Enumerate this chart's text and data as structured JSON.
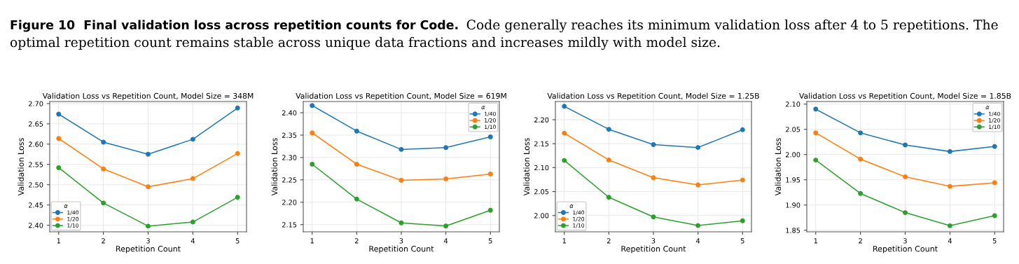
{
  "chart_data": [
    {
      "type": "line",
      "title": "Validation Loss vs Repetition Count, Model Size = 348M",
      "xlabel": "Repetition Count",
      "ylabel": "Validation Loss",
      "legend_title": "α",
      "annotations": [
        "Figure 10  Final validation loss across repetition counts for Code.",
        "Code generally reaches its minimum validation loss after 4 to 5 repetitions. The optimal repetition count remains stable across unique data fractions and increases mildly with model size."
      ],
      "x": [
        1,
        2,
        3,
        4,
        5
      ],
      "xlim": [
        0.8,
        5.2
      ],
      "xticks": [
        1,
        2,
        3,
        4,
        5
      ],
      "ylim": [
        2.384,
        2.705
      ],
      "yticks": [
        {
          "value": 2.4,
          "label": "2.40"
        },
        2.45,
        {
          "value": 2.5,
          "label": "2.50"
        },
        2.55,
        {
          "value": 2.6,
          "label": "2.60"
        },
        2.65,
        {
          "value": 2.7,
          "label": "2.70"
        }
      ],
      "grid": true,
      "legend": "bottom left",
      "marker": "circle",
      "line_style": "solid",
      "series": [
        {
          "name": "1/40",
          "color": "#1f77b4",
          "values": [
            2.674,
            2.605,
            2.575,
            2.612,
            2.689
          ]
        },
        {
          "name": "1/20",
          "color": "#ff7f0e",
          "values": [
            2.614,
            2.539,
            2.495,
            2.515,
            2.577
          ]
        },
        {
          "name": "1/10",
          "color": "#2ca02c",
          "values": [
            2.542,
            2.455,
            2.398,
            2.408,
            2.469
          ]
        }
      ]
    },
    {
      "type": "line",
      "title": "Validation Loss vs Repetition Count, Model Size = 619M",
      "xlabel": "Repetition Count",
      "ylabel": "Validation Loss",
      "legend_title": "α",
      "x": [
        1,
        2,
        3,
        4,
        5
      ],
      "xlim": [
        0.8,
        5.2
      ],
      "xticks": [
        1,
        2,
        3,
        4,
        5
      ],
      "ylim": [
        2.134,
        2.425
      ],
      "yticks": [
        2.15,
        {
          "value": 2.2,
          "label": "2.20"
        },
        2.25,
        {
          "value": 2.3,
          "label": "2.30"
        },
        2.35,
        {
          "value": 2.4,
          "label": "2.40"
        }
      ],
      "grid": true,
      "legend": "top right",
      "marker": "circle",
      "line_style": "solid",
      "series": [
        {
          "name": "1/40",
          "color": "#1f77b4",
          "values": [
            2.416,
            2.359,
            2.318,
            2.322,
            2.346
          ]
        },
        {
          "name": "1/20",
          "color": "#ff7f0e",
          "values": [
            2.355,
            2.285,
            2.249,
            2.252,
            2.263
          ]
        },
        {
          "name": "1/10",
          "color": "#2ca02c",
          "values": [
            2.285,
            2.207,
            2.154,
            2.147,
            2.182
          ]
        }
      ]
    },
    {
      "type": "line",
      "title": "Validation Loss vs Repetition Count, Model Size = 1.25B",
      "xlabel": "Repetition Count",
      "ylabel": "Validation Loss",
      "legend_title": "α",
      "x": [
        1,
        2,
        3,
        4,
        5
      ],
      "xlim": [
        0.8,
        5.2
      ],
      "xticks": [
        1,
        2,
        3,
        4,
        5
      ],
      "ylim": [
        1.966,
        2.238
      ],
      "yticks": [
        {
          "value": 2.0,
          "label": "2.00"
        },
        2.05,
        {
          "value": 2.1,
          "label": "2.10"
        },
        2.15,
        {
          "value": 2.2,
          "label": "2.20"
        }
      ],
      "grid": true,
      "legend": "bottom left",
      "marker": "circle",
      "line_style": "solid",
      "series": [
        {
          "name": "1/40",
          "color": "#1f77b4",
          "values": [
            2.228,
            2.18,
            2.148,
            2.142,
            2.179
          ]
        },
        {
          "name": "1/20",
          "color": "#ff7f0e",
          "values": [
            2.172,
            2.116,
            2.079,
            2.064,
            2.074
          ]
        },
        {
          "name": "1/10",
          "color": "#2ca02c",
          "values": [
            2.115,
            2.038,
            1.997,
            1.979,
            1.989
          ]
        }
      ]
    },
    {
      "type": "line",
      "title": "Validation Loss vs Repetition Count, Model Size = 1.85B",
      "xlabel": "Repetition Count",
      "ylabel": "Validation Loss",
      "legend_title": "α",
      "x": [
        1,
        2,
        3,
        4,
        5
      ],
      "xlim": [
        0.8,
        5.2
      ],
      "xticks": [
        1,
        2,
        3,
        4,
        5
      ],
      "ylim": [
        1.847,
        2.105
      ],
      "yticks": [
        1.85,
        {
          "value": 1.9,
          "label": "1.90"
        },
        1.95,
        {
          "value": 2.0,
          "label": "2.00"
        },
        2.05,
        {
          "value": 2.1,
          "label": "2.10"
        }
      ],
      "grid": true,
      "legend": "top right",
      "marker": "circle",
      "line_style": "solid",
      "series": [
        {
          "name": "1/40",
          "color": "#1f77b4",
          "values": [
            2.09,
            2.043,
            2.019,
            2.006,
            2.016
          ]
        },
        {
          "name": "1/20",
          "color": "#ff7f0e",
          "values": [
            2.043,
            1.991,
            1.956,
            1.937,
            1.944
          ]
        },
        {
          "name": "1/10",
          "color": "#2ca02c",
          "values": [
            1.989,
            1.923,
            1.885,
            1.859,
            1.879
          ]
        }
      ]
    }
  ]
}
